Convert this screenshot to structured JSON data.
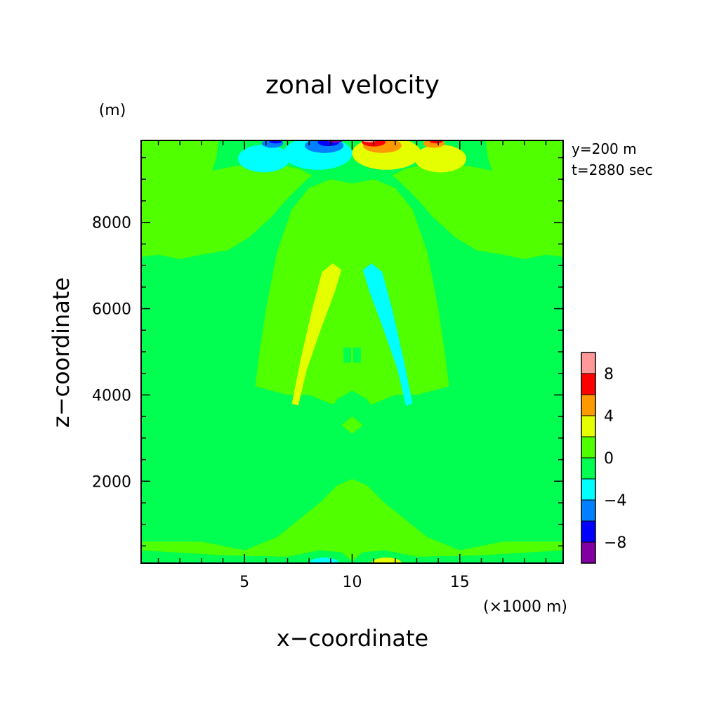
{
  "chart_data": {
    "type": "heatmap",
    "title": "zonal velocity",
    "xlabel": "x−coordinate",
    "ylabel": "z−coordinate",
    "x_unit": "(×1000 m)",
    "y_unit": "(m)",
    "xlim": [
      0.2,
      19.8
    ],
    "ylim": [
      100,
      9900
    ],
    "x_ticks": [
      5,
      10,
      15
    ],
    "y_ticks": [
      2000,
      4000,
      6000,
      8000
    ],
    "annotations": [
      "y=200 m",
      "t=2880 sec"
    ],
    "colorbar": {
      "levels": [
        -10,
        -8,
        -6,
        -4,
        -2,
        0,
        2,
        4,
        6,
        8,
        10
      ],
      "tick_labels": [
        "8",
        "4",
        "0",
        "−4",
        "−8"
      ],
      "tick_values": [
        8,
        4,
        0,
        -4,
        -8
      ],
      "colors": [
        "#8000a0",
        "#0000ff",
        "#0080ff",
        "#00ffff",
        "#00ff50",
        "#50ff00",
        "#e6ff00",
        "#ff9900",
        "#ff0000",
        "#ff9999"
      ]
    },
    "background_value_range": [
      -2,
      0
    ],
    "features": [
      {
        "shape": "poly",
        "level": 1,
        "pts": [
          [
            0.2,
            9900
          ],
          [
            0.2,
            7200
          ],
          [
            1,
            7250
          ],
          [
            2,
            7150
          ],
          [
            3,
            7250
          ],
          [
            4.2,
            7350
          ],
          [
            5.2,
            7650
          ],
          [
            6.2,
            8100
          ],
          [
            7,
            8550
          ],
          [
            7.8,
            8950
          ],
          [
            8.6,
            9280
          ],
          [
            9.3,
            9500
          ],
          [
            10,
            9600
          ],
          [
            10.7,
            9500
          ],
          [
            11.4,
            9280
          ],
          [
            12.2,
            8950
          ],
          [
            13,
            8550
          ],
          [
            13.8,
            8100
          ],
          [
            14.8,
            7650
          ],
          [
            15.8,
            7350
          ],
          [
            17,
            7250
          ],
          [
            18,
            7150
          ],
          [
            19,
            7250
          ],
          [
            19.8,
            7200
          ],
          [
            19.8,
            9900
          ]
        ]
      },
      {
        "shape": "poly",
        "level": 0,
        "pts": [
          [
            3.8,
            9900
          ],
          [
            3.7,
            9500
          ],
          [
            3.5,
            9200
          ],
          [
            4.5,
            9300
          ],
          [
            6.0,
            9400
          ],
          [
            7.5,
            9250
          ],
          [
            8.5,
            9000
          ],
          [
            9.2,
            9200
          ],
          [
            10,
            9500
          ],
          [
            10.8,
            9200
          ],
          [
            11.5,
            9000
          ],
          [
            12.5,
            9250
          ],
          [
            14,
            9400
          ],
          [
            15.5,
            9300
          ],
          [
            16.5,
            9200
          ],
          [
            16.3,
            9500
          ],
          [
            16.2,
            9900
          ]
        ]
      },
      {
        "shape": "poly",
        "level": 1,
        "pts": [
          [
            6.5,
            7300
          ],
          [
            7.2,
            8300
          ],
          [
            8,
            8800
          ],
          [
            9,
            9000
          ],
          [
            10,
            8900
          ],
          [
            11,
            9000
          ],
          [
            12,
            8800
          ],
          [
            12.8,
            8300
          ],
          [
            13.5,
            7300
          ],
          [
            14,
            6000
          ],
          [
            14.3,
            5000
          ],
          [
            14.5,
            4200
          ],
          [
            13,
            4000
          ],
          [
            12,
            4000
          ],
          [
            11,
            3800
          ],
          [
            10,
            3700
          ],
          [
            9,
            3800
          ],
          [
            8,
            4000
          ],
          [
            7,
            4000
          ],
          [
            5.5,
            4200
          ],
          [
            5.7,
            5000
          ],
          [
            6,
            6000
          ]
        ]
      },
      {
        "shape": "poly",
        "level": 0,
        "pts": [
          [
            0.2,
            100
          ],
          [
            0.2,
            3100
          ],
          [
            2,
            3150
          ],
          [
            3.5,
            3050
          ],
          [
            4.8,
            2600
          ],
          [
            5.8,
            2000
          ],
          [
            6.8,
            1650
          ],
          [
            7.5,
            1500
          ],
          [
            8.3,
            1200
          ],
          [
            9,
            900
          ],
          [
            9.6,
            500
          ],
          [
            10,
            300
          ],
          [
            10.4,
            500
          ],
          [
            11,
            900
          ],
          [
            11.7,
            1200
          ],
          [
            12.5,
            1500
          ],
          [
            13.2,
            1650
          ],
          [
            14.2,
            2000
          ],
          [
            15.2,
            2600
          ],
          [
            16.5,
            3050
          ],
          [
            18,
            3150
          ],
          [
            19.8,
            3100
          ],
          [
            19.8,
            100
          ]
        ]
      },
      {
        "shape": "poly",
        "level": 1,
        "pts": [
          [
            0.2,
            100
          ],
          [
            0.2,
            600
          ],
          [
            3,
            600
          ],
          [
            5,
            400
          ],
          [
            6.5,
            700
          ],
          [
            7.5,
            1100
          ],
          [
            8.5,
            1500
          ],
          [
            9.3,
            1900
          ],
          [
            10,
            2050
          ],
          [
            10.7,
            1900
          ],
          [
            11.5,
            1500
          ],
          [
            12.5,
            1100
          ],
          [
            13.5,
            700
          ],
          [
            15,
            400
          ],
          [
            17,
            600
          ],
          [
            19.8,
            600
          ],
          [
            19.8,
            100
          ]
        ]
      },
      {
        "shape": "poly",
        "level": 0,
        "pts": [
          [
            0.2,
            100
          ],
          [
            0.2,
            400
          ],
          [
            4,
            280
          ],
          [
            7,
            250
          ],
          [
            8.5,
            400
          ],
          [
            9.5,
            350
          ],
          [
            10,
            150
          ],
          [
            10.5,
            350
          ],
          [
            11.5,
            400
          ],
          [
            13,
            250
          ],
          [
            16,
            280
          ],
          [
            19.8,
            400
          ],
          [
            19.8,
            100
          ]
        ]
      },
      {
        "shape": "poly",
        "level": 0,
        "pts": [
          [
            8,
            2700
          ],
          [
            8.7,
            3400
          ],
          [
            9.3,
            3900
          ],
          [
            10,
            4100
          ],
          [
            10.7,
            3900
          ],
          [
            11.3,
            3400
          ],
          [
            12,
            2700
          ],
          [
            11,
            2400
          ],
          [
            10,
            2300
          ],
          [
            9,
            2400
          ]
        ]
      },
      {
        "shape": "poly",
        "level": 1,
        "pts": [
          [
            9.5,
            3300
          ],
          [
            10,
            3500
          ],
          [
            10.5,
            3300
          ],
          [
            10,
            3100
          ]
        ]
      },
      {
        "shape": "poly",
        "level": 2,
        "pts": [
          [
            7.5,
            3750
          ],
          [
            7.9,
            4600
          ],
          [
            8.6,
            5600
          ],
          [
            9.2,
            6400
          ],
          [
            9.5,
            6900
          ],
          [
            9.1,
            7050
          ],
          [
            8.6,
            6850
          ],
          [
            8.1,
            5900
          ],
          [
            7.6,
            4800
          ],
          [
            7.2,
            3800
          ]
        ]
      },
      {
        "shape": "poly",
        "level": -1,
        "pts": [
          [
            12.5,
            3750
          ],
          [
            12.1,
            4600
          ],
          [
            11.4,
            5600
          ],
          [
            10.8,
            6400
          ],
          [
            10.5,
            6900
          ],
          [
            10.9,
            7050
          ],
          [
            11.4,
            6850
          ],
          [
            11.9,
            5900
          ],
          [
            12.4,
            4800
          ],
          [
            12.8,
            3800
          ]
        ]
      },
      {
        "shape": "rect",
        "level": 0,
        "x0": 9.6,
        "x1": 9.95,
        "y0": 4750,
        "y1": 5100
      },
      {
        "shape": "rect",
        "level": 0,
        "x0": 10.05,
        "x1": 10.4,
        "y0": 4750,
        "y1": 5100
      },
      {
        "shape": "ell",
        "level": -1,
        "cx": 5.9,
        "cy": 9480,
        "rx": 1.2,
        "ry": 320
      },
      {
        "shape": "ell",
        "level": -1,
        "cx": 8.4,
        "cy": 9600,
        "rx": 1.6,
        "ry": 380
      },
      {
        "shape": "ell",
        "level": -2,
        "cx": 8.7,
        "cy": 9780,
        "rx": 0.9,
        "ry": 170
      },
      {
        "shape": "ell",
        "level": -3,
        "cx": 8.9,
        "cy": 9860,
        "rx": 0.5,
        "ry": 90
      },
      {
        "shape": "ell",
        "level": -4,
        "cx": 9.2,
        "cy": 9890,
        "rx": 0.35,
        "ry": 40
      },
      {
        "shape": "ell",
        "level": -2,
        "cx": 6.3,
        "cy": 9830,
        "rx": 0.5,
        "ry": 100
      },
      {
        "shape": "ell",
        "level": -3,
        "cx": 6.45,
        "cy": 9880,
        "rx": 0.3,
        "ry": 50
      },
      {
        "shape": "ell",
        "level": 2,
        "cx": 14.1,
        "cy": 9480,
        "rx": 1.2,
        "ry": 320
      },
      {
        "shape": "ell",
        "level": 2,
        "cx": 11.6,
        "cy": 9600,
        "rx": 1.6,
        "ry": 380
      },
      {
        "shape": "ell",
        "level": 3,
        "cx": 11.4,
        "cy": 9780,
        "rx": 0.9,
        "ry": 170
      },
      {
        "shape": "ell",
        "level": 4,
        "cx": 11.0,
        "cy": 9860,
        "rx": 0.55,
        "ry": 100
      },
      {
        "shape": "ell",
        "level": 5,
        "cx": 10.8,
        "cy": 9895,
        "rx": 0.3,
        "ry": 40
      },
      {
        "shape": "ell",
        "level": 3,
        "cx": 13.8,
        "cy": 9830,
        "rx": 0.5,
        "ry": 100
      },
      {
        "shape": "ell",
        "level": 4,
        "cx": 13.9,
        "cy": 9880,
        "rx": 0.3,
        "ry": 50
      },
      {
        "shape": "ell",
        "level": -1,
        "cx": 8.7,
        "cy": 100,
        "rx": 0.7,
        "ry": 130
      },
      {
        "shape": "ell",
        "level": 2,
        "cx": 11.6,
        "cy": 100,
        "rx": 0.7,
        "ry": 130
      }
    ]
  }
}
